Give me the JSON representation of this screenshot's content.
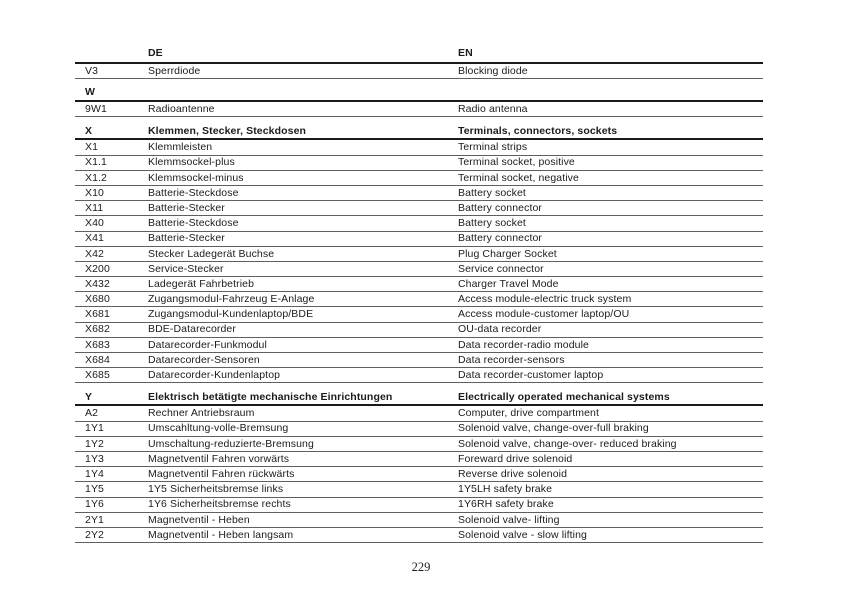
{
  "page_number": "229",
  "table": {
    "header": {
      "de": "DE",
      "en": "EN"
    },
    "sections": [
      {
        "code": "",
        "title_de": "",
        "title_en": "",
        "rows": [
          {
            "code": "V3",
            "de": "Sperrdiode",
            "en": "Blocking diode"
          }
        ]
      },
      {
        "code": "W",
        "title_de": "",
        "title_en": "",
        "rows": [
          {
            "code": "9W1",
            "de": "Radioantenne",
            "en": "Radio antenna"
          }
        ]
      },
      {
        "code": "X",
        "title_de": "Klemmen, Stecker, Steckdosen",
        "title_en": "Terminals, connectors, sockets",
        "rows": [
          {
            "code": "X1",
            "de": "Klemmleisten",
            "en": "Terminal strips"
          },
          {
            "code": "X1.1",
            "de": "Klemmsockel-plus",
            "en": "Terminal socket, positive"
          },
          {
            "code": "X1.2",
            "de": "Klemmsockel-minus",
            "en": "Terminal socket, negative"
          },
          {
            "code": "X10",
            "de": "Batterie-Steckdose",
            "en": "Battery socket"
          },
          {
            "code": "X11",
            "de": "Batterie-Stecker",
            "en": "Battery connector"
          },
          {
            "code": "X40",
            "de": "Batterie-Steckdose",
            "en": "Battery socket"
          },
          {
            "code": "X41",
            "de": "Batterie-Stecker",
            "en": "Battery connector"
          },
          {
            "code": "X42",
            "de": "Stecker Ladegerät Buchse",
            "en": "Plug Charger Socket"
          },
          {
            "code": "X200",
            "de": "Service-Stecker",
            "en": "Service connector"
          },
          {
            "code": "X432",
            "de": "Ladegerät Fahrbetrieb",
            "en": "Charger Travel Mode"
          },
          {
            "code": "X680",
            "de": "Zugangsmodul-Fahrzeug E-Anlage",
            "en": "Access module-electric truck system"
          },
          {
            "code": "X681",
            "de": "Zugangsmodul-Kundenlaptop/BDE",
            "en": "Access module-customer laptop/OU"
          },
          {
            "code": "X682",
            "de": "BDE-Datarecorder",
            "en": "OU-data recorder"
          },
          {
            "code": "X683",
            "de": "Datarecorder-Funkmodul",
            "en": "Data recorder-radio module"
          },
          {
            "code": "X684",
            "de": "Datarecorder-Sensoren",
            "en": "Data recorder-sensors"
          },
          {
            "code": "X685",
            "de": "Datarecorder-Kundenlaptop",
            "en": "Data recorder-customer laptop"
          }
        ]
      },
      {
        "code": "Y",
        "title_de": "Elektrisch betätigte mechanische Einrichtungen",
        "title_en": "Electrically operated mechanical systems",
        "rows": [
          {
            "code": "A2",
            "de": "Rechner Antriebsraum",
            "en": "Computer, drive compartment"
          },
          {
            "code": "1Y1",
            "de": "Umscahltung-volle-Bremsung",
            "en": "Solenoid valve, change-over-full braking"
          },
          {
            "code": "1Y2",
            "de": "Umschaltung-reduzierte-Bremsung",
            "en": "Solenoid valve, change-over- reduced braking"
          },
          {
            "code": "1Y3",
            "de": "Magnetventil Fahren vorwärts",
            "en": "Foreward drive solenoid"
          },
          {
            "code": "1Y4",
            "de": "Magnetventil Fahren rückwärts",
            "en": "Reverse drive solenoid"
          },
          {
            "code": "1Y5",
            "de": "1Y5 Sicherheitsbremse links",
            "en": "1Y5LH safety brake"
          },
          {
            "code": "1Y6",
            "de": "1Y6 Sicherheitsbremse rechts",
            "en": "1Y6RH safety brake"
          },
          {
            "code": "2Y1",
            "de": "Magnetventil - Heben",
            "en": "Solenoid valve- lifting"
          },
          {
            "code": "2Y2",
            "de": "Magnetventil - Heben langsam",
            "en": "Solenoid valve - slow lifting"
          }
        ]
      }
    ]
  }
}
